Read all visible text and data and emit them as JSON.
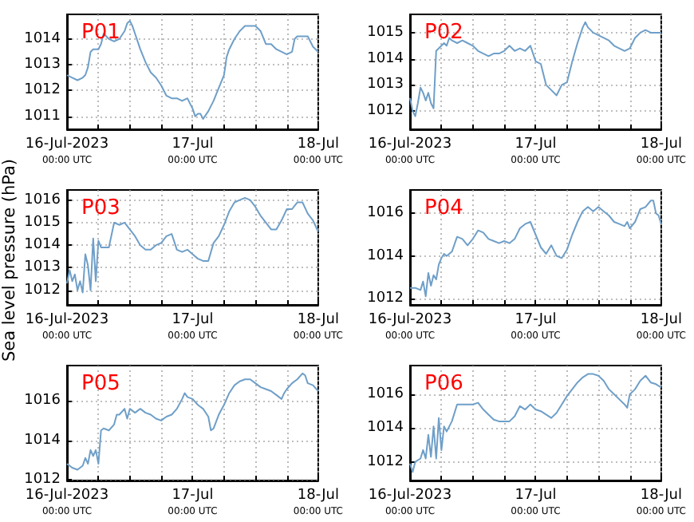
{
  "chart_data": [
    {
      "type": "line",
      "title": "P01",
      "ylabel": "Sea level pressure (hPa)",
      "grid": true,
      "xlim": [
        "2023-07-16T00:00",
        "2023-07-18T00:00"
      ],
      "ylim": [
        1010.5,
        1014.95
      ],
      "yticks": [
        1011,
        1012,
        1013,
        1014
      ],
      "xticks": [
        {
          "value": "2023-07-16T00:00",
          "label": "16-Jul-2023\n00:00 UTC"
        },
        {
          "value": "2023-07-16T06:00",
          "label": null
        },
        {
          "value": "2023-07-16T12:00",
          "label": null
        },
        {
          "value": "2023-07-16T18:00",
          "label": null
        },
        {
          "value": "2023-07-17T00:00",
          "label": "17-Jul\n00:00 UTC"
        },
        {
          "value": "2023-07-17T06:00",
          "label": null
        },
        {
          "value": "2023-07-17T12:00",
          "label": null
        },
        {
          "value": "2023-07-17T18:00",
          "label": null
        },
        {
          "value": "2023-07-18T00:00",
          "label": "18-Jul\n00:00 UTC"
        }
      ],
      "x": [
        "2023-07-16T00:00",
        "2023-07-16T01:00",
        "2023-07-16T02:00",
        "2023-07-16T03:00",
        "2023-07-16T03:30",
        "2023-07-16T04:00",
        "2023-07-16T04:30",
        "2023-07-16T05:00",
        "2023-07-16T06:00",
        "2023-07-16T06:30",
        "2023-07-16T07:00",
        "2023-07-16T07:30",
        "2023-07-16T08:00",
        "2023-07-16T09:00",
        "2023-07-16T10:00",
        "2023-07-16T11:00",
        "2023-07-16T11:30",
        "2023-07-16T12:00",
        "2023-07-16T12:30",
        "2023-07-16T13:00",
        "2023-07-16T14:00",
        "2023-07-16T15:00",
        "2023-07-16T16:00",
        "2023-07-16T17:00",
        "2023-07-16T18:00",
        "2023-07-16T19:00",
        "2023-07-16T20:00",
        "2023-07-16T21:00",
        "2023-07-16T22:00",
        "2023-07-16T23:00",
        "2023-07-16T23:30",
        "2023-07-17T00:00",
        "2023-07-17T00:30",
        "2023-07-17T01:00",
        "2023-07-17T01:30",
        "2023-07-17T02:00",
        "2023-07-17T03:00",
        "2023-07-17T04:00",
        "2023-07-17T05:00",
        "2023-07-17T06:00",
        "2023-07-17T06:30",
        "2023-07-17T07:00",
        "2023-07-17T08:00",
        "2023-07-17T09:00",
        "2023-07-17T10:00",
        "2023-07-17T11:00",
        "2023-07-17T12:00",
        "2023-07-17T13:00",
        "2023-07-17T14:00",
        "2023-07-17T15:00",
        "2023-07-17T16:00",
        "2023-07-17T17:00",
        "2023-07-17T18:00",
        "2023-07-17T19:00",
        "2023-07-17T19:30",
        "2023-07-17T20:00",
        "2023-07-17T21:00",
        "2023-07-17T22:00",
        "2023-07-17T23:00",
        "2023-07-18T00:00"
      ],
      "series": [
        {
          "color": "#6f9fc8",
          "values": [
            1012.6,
            1012.5,
            1012.4,
            1012.5,
            1012.6,
            1012.9,
            1013.5,
            1013.6,
            1013.6,
            1013.8,
            1014.2,
            1014.1,
            1014.0,
            1013.9,
            1014.0,
            1014.3,
            1014.6,
            1014.7,
            1014.5,
            1014.2,
            1013.6,
            1013.1,
            1012.7,
            1012.5,
            1012.2,
            1011.8,
            1011.7,
            1011.7,
            1011.6,
            1011.7,
            1011.5,
            1011.3,
            1011.0,
            1011.1,
            1011.1,
            1010.9,
            1011.2,
            1011.6,
            1012.1,
            1012.6,
            1013.3,
            1013.6,
            1014.0,
            1014.3,
            1014.5,
            1014.5,
            1014.5,
            1014.3,
            1013.8,
            1013.8,
            1013.6,
            1013.5,
            1013.4,
            1013.5,
            1014.0,
            1014.1,
            1014.1,
            1014.1,
            1013.7,
            1013.5
          ]
        }
      ]
    },
    {
      "type": "line",
      "title": "P02",
      "grid": true,
      "xlim": [
        "2023-07-16T00:00",
        "2023-07-18T00:00"
      ],
      "ylim": [
        1011.3,
        1015.7
      ],
      "yticks": [
        1012,
        1013,
        1014,
        1015
      ],
      "xticks": [
        {
          "value": "2023-07-16T00:00",
          "label": "16-Jul-2023\n00:00 UTC"
        },
        {
          "value": "2023-07-16T06:00",
          "label": null
        },
        {
          "value": "2023-07-16T12:00",
          "label": null
        },
        {
          "value": "2023-07-16T18:00",
          "label": null
        },
        {
          "value": "2023-07-17T00:00",
          "label": "17-Jul\n00:00 UTC"
        },
        {
          "value": "2023-07-17T06:00",
          "label": null
        },
        {
          "value": "2023-07-17T12:00",
          "label": null
        },
        {
          "value": "2023-07-17T18:00",
          "label": null
        },
        {
          "value": "2023-07-18T00:00",
          "label": "18-Jul\n00:00 UTC"
        }
      ],
      "x": [
        "2023-07-16T00:00",
        "2023-07-16T00:30",
        "2023-07-16T01:00",
        "2023-07-16T01:30",
        "2023-07-16T02:00",
        "2023-07-16T02:30",
        "2023-07-16T03:00",
        "2023-07-16T03:30",
        "2023-07-16T04:00",
        "2023-07-16T04:30",
        "2023-07-16T05:00",
        "2023-07-16T05:30",
        "2023-07-16T06:00",
        "2023-07-16T06:30",
        "2023-07-16T07:00",
        "2023-07-16T07:30",
        "2023-07-16T08:00",
        "2023-07-16T09:00",
        "2023-07-16T10:00",
        "2023-07-16T11:00",
        "2023-07-16T12:00",
        "2023-07-16T13:00",
        "2023-07-16T14:00",
        "2023-07-16T15:00",
        "2023-07-16T16:00",
        "2023-07-16T17:00",
        "2023-07-16T18:00",
        "2023-07-16T19:00",
        "2023-07-16T20:00",
        "2023-07-16T21:00",
        "2023-07-16T22:00",
        "2023-07-16T23:00",
        "2023-07-17T00:00",
        "2023-07-17T01:00",
        "2023-07-17T02:00",
        "2023-07-17T03:00",
        "2023-07-17T04:00",
        "2023-07-17T05:00",
        "2023-07-17T06:00",
        "2023-07-17T07:00",
        "2023-07-17T08:00",
        "2023-07-17T09:00",
        "2023-07-17T09:30",
        "2023-07-17T10:00",
        "2023-07-17T11:00",
        "2023-07-17T12:00",
        "2023-07-17T13:00",
        "2023-07-17T14:00",
        "2023-07-17T15:00",
        "2023-07-17T16:00",
        "2023-07-17T17:00",
        "2023-07-17T18:00",
        "2023-07-17T19:00",
        "2023-07-17T19:30",
        "2023-07-17T20:00",
        "2023-07-17T21:00",
        "2023-07-17T22:00",
        "2023-07-17T23:00",
        "2023-07-18T00:00"
      ],
      "series": [
        {
          "color": "#6f9fc8",
          "values": [
            1012.5,
            1012.0,
            1011.8,
            1012.3,
            1012.9,
            1012.7,
            1012.4,
            1012.7,
            1012.3,
            1012.1,
            1014.3,
            1014.4,
            1014.5,
            1014.6,
            1014.5,
            1014.8,
            1014.7,
            1014.6,
            1014.7,
            1014.6,
            1014.5,
            1014.3,
            1014.2,
            1014.1,
            1014.2,
            1014.2,
            1014.3,
            1014.5,
            1014.3,
            1014.4,
            1014.3,
            1014.5,
            1013.9,
            1013.8,
            1013.0,
            1012.8,
            1012.6,
            1013.0,
            1013.1,
            1013.9,
            1014.6,
            1015.2,
            1015.4,
            1015.2,
            1015.0,
            1014.9,
            1014.8,
            1014.7,
            1014.5,
            1014.4,
            1014.3,
            1014.4,
            1014.8,
            1014.9,
            1015.0,
            1015.1,
            1015.0,
            1015.0,
            1015.0
          ]
        }
      ]
    },
    {
      "type": "line",
      "title": "P03",
      "grid": true,
      "xlim": [
        "2023-07-16T00:00",
        "2023-07-18T00:00"
      ],
      "ylim": [
        1011.35,
        1016.45
      ],
      "yticks": [
        1012,
        1013,
        1014,
        1015,
        1016
      ],
      "xticks": [
        {
          "value": "2023-07-16T00:00",
          "label": "16-Jul-2023\n00:00 UTC"
        },
        {
          "value": "2023-07-16T06:00",
          "label": null
        },
        {
          "value": "2023-07-16T12:00",
          "label": null
        },
        {
          "value": "2023-07-16T18:00",
          "label": null
        },
        {
          "value": "2023-07-17T00:00",
          "label": "17-Jul\n00:00 UTC"
        },
        {
          "value": "2023-07-17T06:00",
          "label": null
        },
        {
          "value": "2023-07-17T12:00",
          "label": null
        },
        {
          "value": "2023-07-17T18:00",
          "label": null
        },
        {
          "value": "2023-07-18T00:00",
          "label": "18-Jul\n00:00 UTC"
        }
      ],
      "x": [
        "2023-07-16T00:00",
        "2023-07-16T00:30",
        "2023-07-16T01:00",
        "2023-07-16T01:30",
        "2023-07-16T02:00",
        "2023-07-16T02:30",
        "2023-07-16T03:00",
        "2023-07-16T03:30",
        "2023-07-16T04:00",
        "2023-07-16T04:30",
        "2023-07-16T05:00",
        "2023-07-16T05:30",
        "2023-07-16T06:00",
        "2023-07-16T06:30",
        "2023-07-16T07:00",
        "2023-07-16T08:00",
        "2023-07-16T09:00",
        "2023-07-16T10:00",
        "2023-07-16T11:00",
        "2023-07-16T12:00",
        "2023-07-16T13:00",
        "2023-07-16T14:00",
        "2023-07-16T15:00",
        "2023-07-16T16:00",
        "2023-07-16T17:00",
        "2023-07-16T18:00",
        "2023-07-16T19:00",
        "2023-07-16T20:00",
        "2023-07-16T21:00",
        "2023-07-16T22:00",
        "2023-07-16T23:00",
        "2023-07-17T00:00",
        "2023-07-17T01:00",
        "2023-07-17T02:00",
        "2023-07-17T03:00",
        "2023-07-17T04:00",
        "2023-07-17T05:00",
        "2023-07-17T06:00",
        "2023-07-17T07:00",
        "2023-07-17T08:00",
        "2023-07-17T09:00",
        "2023-07-17T10:00",
        "2023-07-17T11:00",
        "2023-07-17T12:00",
        "2023-07-17T13:00",
        "2023-07-17T14:00",
        "2023-07-17T15:00",
        "2023-07-17T16:00",
        "2023-07-17T17:00",
        "2023-07-17T18:00",
        "2023-07-17T19:00",
        "2023-07-17T20:00",
        "2023-07-17T21:00",
        "2023-07-17T22:00",
        "2023-07-17T23:00",
        "2023-07-18T00:00"
      ],
      "series": [
        {
          "color": "#6f9fc8",
          "values": [
            1012.3,
            1012.9,
            1012.4,
            1012.7,
            1012.0,
            1012.4,
            1011.9,
            1013.6,
            1013.1,
            1012.0,
            1014.3,
            1012.4,
            1014.2,
            1013.9,
            1013.9,
            1013.9,
            1015.0,
            1014.9,
            1015.0,
            1014.7,
            1014.4,
            1014.0,
            1013.8,
            1013.8,
            1014.0,
            1014.1,
            1014.4,
            1014.5,
            1013.8,
            1013.7,
            1013.8,
            1013.6,
            1013.4,
            1013.3,
            1013.3,
            1014.1,
            1014.4,
            1014.9,
            1015.5,
            1015.9,
            1016.0,
            1016.1,
            1016.0,
            1015.7,
            1015.3,
            1015.0,
            1014.7,
            1014.7,
            1015.1,
            1015.6,
            1015.6,
            1015.9,
            1015.9,
            1015.4,
            1015.1,
            1014.6
          ]
        }
      ]
    },
    {
      "type": "line",
      "title": "P04",
      "grid": true,
      "xlim": [
        "2023-07-16T00:00",
        "2023-07-18T00:00"
      ],
      "ylim": [
        1011.7,
        1017.1
      ],
      "yticks": [
        1012,
        1014,
        1016
      ],
      "xticks": [
        {
          "value": "2023-07-16T00:00",
          "label": "16-Jul-2023\n00:00 UTC"
        },
        {
          "value": "2023-07-16T06:00",
          "label": null
        },
        {
          "value": "2023-07-16T12:00",
          "label": null
        },
        {
          "value": "2023-07-16T18:00",
          "label": null
        },
        {
          "value": "2023-07-17T00:00",
          "label": "17-Jul\n00:00 UTC"
        },
        {
          "value": "2023-07-17T06:00",
          "label": null
        },
        {
          "value": "2023-07-17T12:00",
          "label": null
        },
        {
          "value": "2023-07-17T18:00",
          "label": null
        },
        {
          "value": "2023-07-18T00:00",
          "label": "18-Jul\n00:00 UTC"
        }
      ],
      "x": [
        "2023-07-16T00:00",
        "2023-07-16T01:00",
        "2023-07-16T02:00",
        "2023-07-16T02:30",
        "2023-07-16T03:00",
        "2023-07-16T03:30",
        "2023-07-16T04:00",
        "2023-07-16T04:30",
        "2023-07-16T05:00",
        "2023-07-16T05:30",
        "2023-07-16T06:00",
        "2023-07-16T06:30",
        "2023-07-16T07:00",
        "2023-07-16T08:00",
        "2023-07-16T09:00",
        "2023-07-16T10:00",
        "2023-07-16T11:00",
        "2023-07-16T12:00",
        "2023-07-16T13:00",
        "2023-07-16T14:00",
        "2023-07-16T15:00",
        "2023-07-16T16:00",
        "2023-07-16T17:00",
        "2023-07-16T18:00",
        "2023-07-16T19:00",
        "2023-07-16T20:00",
        "2023-07-16T21:00",
        "2023-07-16T22:00",
        "2023-07-16T23:00",
        "2023-07-17T00:00",
        "2023-07-17T01:00",
        "2023-07-17T02:00",
        "2023-07-17T03:00",
        "2023-07-17T04:00",
        "2023-07-17T05:00",
        "2023-07-17T06:00",
        "2023-07-17T07:00",
        "2023-07-17T08:00",
        "2023-07-17T09:00",
        "2023-07-17T10:00",
        "2023-07-17T11:00",
        "2023-07-17T12:00",
        "2023-07-17T13:00",
        "2023-07-17T14:00",
        "2023-07-17T15:00",
        "2023-07-17T16:00",
        "2023-07-17T17:00",
        "2023-07-17T17:30",
        "2023-07-17T18:00",
        "2023-07-17T19:00",
        "2023-07-17T20:00",
        "2023-07-17T21:00",
        "2023-07-17T22:00",
        "2023-07-17T22:30",
        "2023-07-17T23:00",
        "2023-07-17T23:30",
        "2023-07-18T00:00"
      ],
      "series": [
        {
          "color": "#6f9fc8",
          "values": [
            1012.5,
            1012.5,
            1012.4,
            1012.8,
            1012.1,
            1013.2,
            1012.6,
            1013.1,
            1012.9,
            1013.6,
            1013.9,
            1014.1,
            1014.0,
            1014.2,
            1014.9,
            1014.8,
            1014.5,
            1014.8,
            1015.2,
            1015.1,
            1014.8,
            1014.7,
            1014.6,
            1014.7,
            1014.6,
            1014.8,
            1015.3,
            1015.5,
            1015.6,
            1015.0,
            1014.4,
            1014.1,
            1014.5,
            1014.0,
            1013.9,
            1014.3,
            1015.0,
            1015.6,
            1016.1,
            1016.3,
            1016.1,
            1016.3,
            1016.1,
            1015.9,
            1015.6,
            1015.5,
            1015.4,
            1015.6,
            1015.3,
            1015.6,
            1016.2,
            1016.3,
            1016.6,
            1016.6,
            1016.0,
            1015.9,
            1015.5
          ]
        }
      ]
    },
    {
      "type": "line",
      "title": "P05",
      "grid": true,
      "xlim": [
        "2023-07-16T00:00",
        "2023-07-18T00:00"
      ],
      "ylim": [
        1011.95,
        1017.8
      ],
      "yticks": [
        1012,
        1014,
        1016
      ],
      "xticks": [
        {
          "value": "2023-07-16T00:00",
          "label": "16-Jul-2023\n00:00 UTC"
        },
        {
          "value": "2023-07-16T06:00",
          "label": null
        },
        {
          "value": "2023-07-16T12:00",
          "label": null
        },
        {
          "value": "2023-07-16T18:00",
          "label": null
        },
        {
          "value": "2023-07-17T00:00",
          "label": "17-Jul\n00:00 UTC"
        },
        {
          "value": "2023-07-17T06:00",
          "label": null
        },
        {
          "value": "2023-07-17T12:00",
          "label": null
        },
        {
          "value": "2023-07-17T18:00",
          "label": null
        },
        {
          "value": "2023-07-18T00:00",
          "label": "18-Jul\n00:00 UTC"
        }
      ],
      "x": [
        "2023-07-16T00:00",
        "2023-07-16T01:00",
        "2023-07-16T02:00",
        "2023-07-16T03:00",
        "2023-07-16T03:30",
        "2023-07-16T04:00",
        "2023-07-16T04:30",
        "2023-07-16T05:00",
        "2023-07-16T05:30",
        "2023-07-16T06:00",
        "2023-07-16T06:30",
        "2023-07-16T07:00",
        "2023-07-16T08:00",
        "2023-07-16T09:00",
        "2023-07-16T09:30",
        "2023-07-16T10:00",
        "2023-07-16T11:00",
        "2023-07-16T11:30",
        "2023-07-16T12:00",
        "2023-07-16T13:00",
        "2023-07-16T14:00",
        "2023-07-16T15:00",
        "2023-07-16T16:00",
        "2023-07-16T17:00",
        "2023-07-16T18:00",
        "2023-07-16T19:00",
        "2023-07-16T20:00",
        "2023-07-16T21:00",
        "2023-07-16T22:00",
        "2023-07-16T22:30",
        "2023-07-16T23:00",
        "2023-07-17T00:00",
        "2023-07-17T01:00",
        "2023-07-17T02:00",
        "2023-07-17T03:00",
        "2023-07-17T03:30",
        "2023-07-17T04:00",
        "2023-07-17T05:00",
        "2023-07-17T06:00",
        "2023-07-17T07:00",
        "2023-07-17T08:00",
        "2023-07-17T09:00",
        "2023-07-17T10:00",
        "2023-07-17T11:00",
        "2023-07-17T12:00",
        "2023-07-17T13:00",
        "2023-07-17T14:00",
        "2023-07-17T15:00",
        "2023-07-17T16:00",
        "2023-07-17T17:00",
        "2023-07-17T17:30",
        "2023-07-17T18:00",
        "2023-07-17T19:00",
        "2023-07-17T20:00",
        "2023-07-17T21:00",
        "2023-07-17T21:30",
        "2023-07-17T22:00",
        "2023-07-17T23:00",
        "2023-07-18T00:00"
      ],
      "series": [
        {
          "color": "#6f9fc8",
          "values": [
            1012.8,
            1012.6,
            1012.5,
            1012.7,
            1013.1,
            1012.8,
            1013.5,
            1013.2,
            1013.5,
            1012.8,
            1014.5,
            1014.6,
            1014.5,
            1014.8,
            1015.3,
            1015.3,
            1015.6,
            1015.1,
            1015.6,
            1015.4,
            1015.6,
            1015.4,
            1015.3,
            1015.1,
            1015.0,
            1015.2,
            1015.3,
            1015.6,
            1016.1,
            1016.4,
            1016.2,
            1016.1,
            1015.8,
            1015.6,
            1015.2,
            1014.5,
            1014.6,
            1015.3,
            1015.8,
            1016.4,
            1016.8,
            1017.0,
            1017.1,
            1017.1,
            1016.9,
            1016.7,
            1016.6,
            1016.5,
            1016.3,
            1016.1,
            1016.4,
            1016.6,
            1016.9,
            1017.1,
            1017.4,
            1017.3,
            1016.9,
            1016.8,
            1016.5
          ]
        }
      ]
    },
    {
      "type": "line",
      "title": "P06",
      "grid": true,
      "xlim": [
        "2023-07-16T00:00",
        "2023-07-18T00:00"
      ],
      "ylim": [
        1010.9,
        1017.7
      ],
      "yticks": [
        1012,
        1014,
        1016
      ],
      "xticks": [
        {
          "value": "2023-07-16T00:00",
          "label": "16-Jul-2023\n00:00 UTC"
        },
        {
          "value": "2023-07-16T06:00",
          "label": null
        },
        {
          "value": "2023-07-16T12:00",
          "label": null
        },
        {
          "value": "2023-07-16T18:00",
          "label": null
        },
        {
          "value": "2023-07-17T00:00",
          "label": "17-Jul\n00:00 UTC"
        },
        {
          "value": "2023-07-17T06:00",
          "label": null
        },
        {
          "value": "2023-07-17T12:00",
          "label": null
        },
        {
          "value": "2023-07-17T18:00",
          "label": null
        },
        {
          "value": "2023-07-18T00:00",
          "label": "18-Jul\n00:00 UTC"
        }
      ],
      "x": [
        "2023-07-16T00:00",
        "2023-07-16T00:30",
        "2023-07-16T01:00",
        "2023-07-16T02:00",
        "2023-07-16T02:30",
        "2023-07-16T03:00",
        "2023-07-16T03:30",
        "2023-07-16T04:00",
        "2023-07-16T04:30",
        "2023-07-16T05:00",
        "2023-07-16T05:30",
        "2023-07-16T06:00",
        "2023-07-16T06:30",
        "2023-07-16T07:00",
        "2023-07-16T08:00",
        "2023-07-16T09:00",
        "2023-07-16T10:00",
        "2023-07-16T11:00",
        "2023-07-16T12:00",
        "2023-07-16T13:00",
        "2023-07-16T14:00",
        "2023-07-16T15:00",
        "2023-07-16T16:00",
        "2023-07-16T17:00",
        "2023-07-16T18:00",
        "2023-07-16T19:00",
        "2023-07-16T20:00",
        "2023-07-16T21:00",
        "2023-07-16T22:00",
        "2023-07-16T23:00",
        "2023-07-17T00:00",
        "2023-07-17T01:00",
        "2023-07-17T02:00",
        "2023-07-17T03:00",
        "2023-07-17T04:00",
        "2023-07-17T05:00",
        "2023-07-17T06:00",
        "2023-07-17T07:00",
        "2023-07-17T08:00",
        "2023-07-17T09:00",
        "2023-07-17T10:00",
        "2023-07-17T11:00",
        "2023-07-17T12:00",
        "2023-07-17T13:00",
        "2023-07-17T14:00",
        "2023-07-17T15:00",
        "2023-07-17T16:00",
        "2023-07-17T17:00",
        "2023-07-17T17:30",
        "2023-07-17T18:00",
        "2023-07-17T19:00",
        "2023-07-17T20:00",
        "2023-07-17T21:00",
        "2023-07-17T21:30",
        "2023-07-17T22:00",
        "2023-07-17T23:00",
        "2023-07-18T00:00"
      ],
      "series": [
        {
          "color": "#6f9fc8",
          "values": [
            1011.9,
            1011.4,
            1012.0,
            1012.2,
            1012.7,
            1012.2,
            1013.6,
            1012.3,
            1014.1,
            1012.2,
            1014.6,
            1012.7,
            1014.1,
            1013.8,
            1014.4,
            1015.4,
            1015.4,
            1015.4,
            1015.4,
            1015.5,
            1015.1,
            1014.8,
            1014.5,
            1014.4,
            1014.4,
            1014.4,
            1014.7,
            1015.3,
            1015.1,
            1015.4,
            1015.1,
            1015.0,
            1014.8,
            1014.6,
            1014.9,
            1015.4,
            1015.9,
            1016.3,
            1016.7,
            1017.0,
            1017.2,
            1017.2,
            1017.1,
            1016.8,
            1016.3,
            1016.0,
            1015.7,
            1015.4,
            1015.2,
            1016.0,
            1016.3,
            1016.8,
            1017.1,
            1016.9,
            1016.7,
            1016.6,
            1016.4
          ]
        }
      ]
    }
  ]
}
